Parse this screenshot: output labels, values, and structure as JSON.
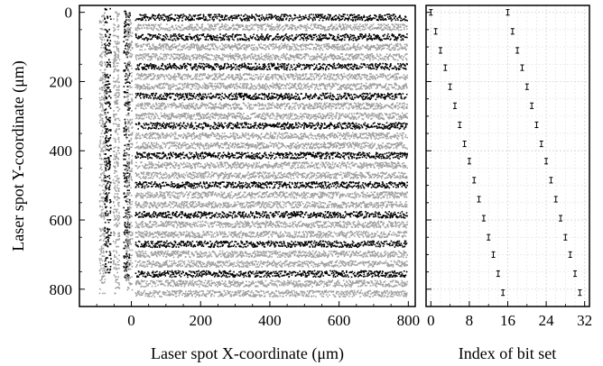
{
  "colors": {
    "dark_series": "#000000",
    "light_series": "#a0a0a0",
    "grid": "#d9d9d9",
    "axes": "#000000"
  },
  "chart_data": [
    {
      "type": "scatter",
      "title": "",
      "xlabel": "Laser spot X-coordinate (μm)",
      "ylabel": "Laser spot Y-coordinate (μm)",
      "xlim": [
        -150,
        820
      ],
      "ylim": [
        850,
        -20
      ],
      "y_inverted": true,
      "xticks": [
        0,
        200,
        400,
        600,
        800
      ],
      "yticks": [
        0,
        200,
        400,
        600,
        800
      ],
      "grid": false,
      "legend": "none",
      "rows": {
        "x_start": 10,
        "x_end": 795,
        "y_values": [
          15,
          43,
          72,
          100,
          129,
          157,
          186,
          214,
          243,
          271,
          300,
          328,
          357,
          385,
          414,
          442,
          471,
          499,
          528,
          556,
          585,
          613,
          642,
          670,
          699,
          727,
          756,
          784,
          813
        ],
        "color_pattern": [
          "dark",
          "light",
          "dark",
          "light",
          "light",
          "dark",
          "light",
          "light",
          "dark",
          "light",
          "light",
          "dark",
          "light",
          "light",
          "dark",
          "light",
          "light",
          "dark",
          "light",
          "light",
          "dark",
          "light",
          "light",
          "dark",
          "light",
          "light",
          "dark",
          "light",
          "light"
        ]
      },
      "left_columns": [
        {
          "x": -85,
          "color": "light",
          "y_range": [
            -10,
            810
          ]
        },
        {
          "x": -70,
          "color": "dark",
          "y_range": [
            -15,
            750
          ]
        },
        {
          "x": -45,
          "color": "light",
          "y_range": [
            -5,
            810
          ]
        },
        {
          "x": -15,
          "color": "dark",
          "y_range": [
            -5,
            770
          ]
        },
        {
          "x": -8,
          "color": "light",
          "y_range": [
            0,
            800
          ]
        }
      ]
    },
    {
      "type": "scatter",
      "title": "",
      "xlabel": "Index of bit set",
      "ylabel": "",
      "xlim": [
        -1,
        33
      ],
      "ylim": [
        850,
        -20
      ],
      "y_inverted": true,
      "xticks": [
        0,
        8,
        16,
        24,
        32
      ],
      "grid": true,
      "legend": "none",
      "points": [
        {
          "x": 0,
          "y": 0
        },
        {
          "x": 1,
          "y": 55
        },
        {
          "x": 2,
          "y": 110
        },
        {
          "x": 3,
          "y": 160
        },
        {
          "x": 4,
          "y": 215
        },
        {
          "x": 5,
          "y": 270
        },
        {
          "x": 6,
          "y": 325
        },
        {
          "x": 7,
          "y": 380
        },
        {
          "x": 8,
          "y": 430
        },
        {
          "x": 9,
          "y": 485
        },
        {
          "x": 10,
          "y": 540
        },
        {
          "x": 11,
          "y": 595
        },
        {
          "x": 12,
          "y": 650
        },
        {
          "x": 13,
          "y": 700
        },
        {
          "x": 14,
          "y": 755
        },
        {
          "x": 15,
          "y": 810
        },
        {
          "x": 16,
          "y": 0
        },
        {
          "x": 17,
          "y": 55
        },
        {
          "x": 18,
          "y": 110
        },
        {
          "x": 19,
          "y": 160
        },
        {
          "x": 20,
          "y": 215
        },
        {
          "x": 21,
          "y": 270
        },
        {
          "x": 22,
          "y": 325
        },
        {
          "x": 23,
          "y": 380
        },
        {
          "x": 24,
          "y": 430
        },
        {
          "x": 25,
          "y": 485
        },
        {
          "x": 26,
          "y": 540
        },
        {
          "x": 27,
          "y": 595
        },
        {
          "x": 28,
          "y": 650
        },
        {
          "x": 29,
          "y": 700
        },
        {
          "x": 30,
          "y": 755
        },
        {
          "x": 31,
          "y": 810
        }
      ],
      "error_bar_halfwidth": 8
    }
  ]
}
